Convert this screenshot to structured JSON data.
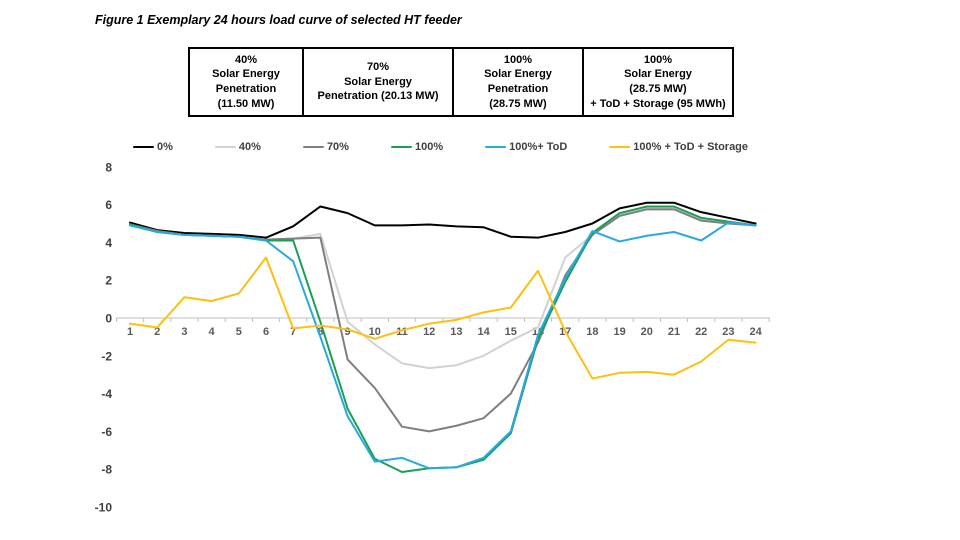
{
  "figure_title": "Figure 1 Exemplary 24 hours load curve of selected HT feeder",
  "scenario_table": {
    "cells": [
      {
        "text": "40%\nSolar Energy\nPenetration\n(11.50 MW)"
      },
      {
        "text": "70%\nSolar Energy\nPenetration (20.13 MW)"
      },
      {
        "text": "100%\nSolar Energy\nPenetration\n(28.75 MW)"
      },
      {
        "text": "100%\nSolar Energy\n(28.75 MW)\n+ ToD + Storage (95 MWh)"
      }
    ]
  },
  "chart_data": {
    "type": "line",
    "title": "",
    "xlabel": "",
    "ylabel": "",
    "x": [
      1,
      2,
      3,
      4,
      5,
      6,
      7,
      8,
      9,
      10,
      11,
      12,
      13,
      14,
      15,
      16,
      17,
      18,
      19,
      20,
      21,
      22,
      23,
      24
    ],
    "ylim": [
      -10,
      8
    ],
    "yticks": [
      8,
      6,
      4,
      2,
      0,
      -2,
      -4,
      -6,
      -8,
      -10
    ],
    "grid": false,
    "legend_position": "top",
    "axis_color": "#bfbfbf",
    "series": [
      {
        "name": "0%",
        "color": "#000000",
        "values": [
          5.05,
          4.65,
          4.5,
          4.45,
          4.4,
          4.25,
          4.85,
          5.9,
          5.55,
          4.9,
          4.9,
          4.95,
          4.85,
          4.8,
          4.3,
          4.25,
          4.55,
          5.0,
          5.8,
          6.1,
          6.1,
          5.6,
          5.3,
          5.0
        ]
      },
      {
        "name": "40%",
        "color": "#d2d2d2",
        "values": [
          4.95,
          4.6,
          4.4,
          4.35,
          4.3,
          4.15,
          4.2,
          4.45,
          -0.2,
          -1.4,
          -2.4,
          -2.65,
          -2.5,
          -2.0,
          -1.2,
          -0.5,
          3.2,
          4.4,
          5.45,
          5.8,
          5.8,
          5.2,
          5.05,
          4.9
        ]
      },
      {
        "name": "70%",
        "color": "#7f7f7f",
        "values": [
          4.95,
          4.6,
          4.4,
          4.35,
          4.3,
          4.15,
          4.2,
          4.25,
          -2.2,
          -3.7,
          -5.75,
          -6.0,
          -5.7,
          -5.3,
          -4.0,
          -1.3,
          2.25,
          4.4,
          5.4,
          5.75,
          5.75,
          5.15,
          5.0,
          4.9
        ]
      },
      {
        "name": "100%",
        "color": "#1aa053",
        "values": [
          4.95,
          4.55,
          4.4,
          4.35,
          4.3,
          4.1,
          4.1,
          -0.2,
          -4.8,
          -7.45,
          -8.15,
          -7.95,
          -7.9,
          -7.5,
          -6.1,
          -1.1,
          1.9,
          4.5,
          5.55,
          5.9,
          5.9,
          5.3,
          5.1,
          4.9
        ]
      },
      {
        "name": "100%+ ToD",
        "color": "#29a9dd",
        "values": [
          4.9,
          4.55,
          4.4,
          4.35,
          4.3,
          4.1,
          3.0,
          -1.0,
          -5.2,
          -7.6,
          -7.4,
          -7.95,
          -7.9,
          -7.4,
          -6.0,
          -0.9,
          2.1,
          4.6,
          4.05,
          4.35,
          4.55,
          4.1,
          5.05,
          4.9
        ]
      },
      {
        "name": "100% + ToD + Storage",
        "color": "#fdc010",
        "values": [
          -0.3,
          -0.5,
          1.1,
          0.9,
          1.3,
          3.2,
          -0.55,
          -0.4,
          -0.6,
          -1.1,
          -0.65,
          -0.3,
          -0.1,
          0.3,
          0.55,
          2.5,
          -0.7,
          -3.2,
          -2.9,
          -2.85,
          -3.0,
          -2.3,
          -1.15,
          -1.3
        ]
      }
    ]
  }
}
